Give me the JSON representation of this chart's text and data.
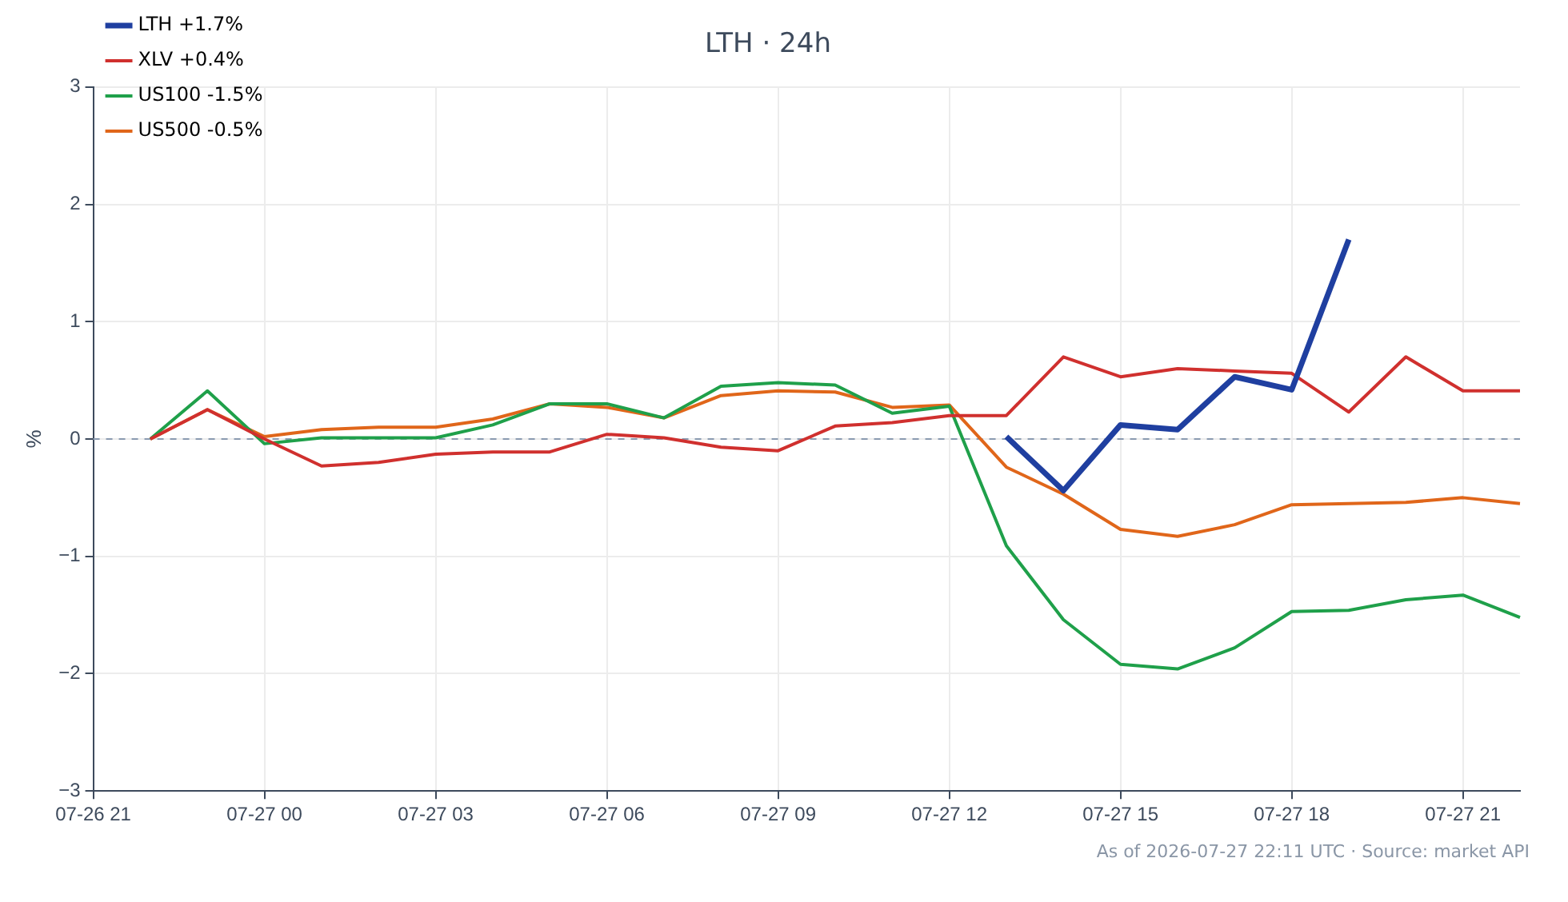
{
  "chart_data": {
    "type": "line",
    "title": "LTH · 24h",
    "ylabel": "%",
    "annotations": [
      "As of 2026-07-27 22:11 UTC · Source: market API"
    ],
    "categories": [
      "07-26 21",
      null,
      null,
      "07-27 00",
      null,
      null,
      "07-27 03",
      null,
      null,
      "07-27 06",
      null,
      null,
      "07-27 09",
      null,
      null,
      "07-27 12",
      null,
      null,
      "07-27 15",
      null,
      null,
      "07-27 18",
      null,
      null,
      "07-27 21",
      null
    ],
    "ylim": [
      -3,
      3
    ],
    "yticks": [
      {
        "value": -3,
        "label": "−3"
      },
      {
        "value": -2,
        "label": "−2"
      },
      {
        "value": -1,
        "label": "−1"
      },
      0,
      1,
      2,
      3
    ],
    "grid": true,
    "legend": "top left",
    "marker": "none",
    "ref_lines": [
      {
        "axis": "y",
        "value": 0,
        "label": null,
        "color": "#8a9ab0",
        "line_style": "dashed"
      }
    ],
    "series": [
      {
        "name": "LTH +1.7%",
        "color": "#1f3fa0",
        "values": [
          null,
          null,
          null,
          null,
          null,
          null,
          null,
          null,
          null,
          null,
          null,
          null,
          null,
          null,
          null,
          null,
          0.02,
          -0.44,
          0.12,
          0.08,
          0.53,
          0.42,
          1.7,
          null,
          null,
          null
        ]
      },
      {
        "name": "XLV +0.4%",
        "color": "#d0302e",
        "values": [
          null,
          0,
          0.25,
          0.0,
          -0.23,
          -0.2,
          -0.13,
          -0.11,
          -0.11,
          0.04,
          0.01,
          -0.07,
          -0.1,
          0.11,
          0.14,
          0.2,
          0.2,
          0.7,
          0.53,
          0.6,
          0.58,
          0.56,
          0.23,
          0.7,
          0.41,
          0.41
        ]
      },
      {
        "name": "US100 -1.5%",
        "color": "#1fa04a",
        "values": [
          null,
          0,
          0.41,
          -0.04,
          0.01,
          0.01,
          0.01,
          0.12,
          0.3,
          0.3,
          0.18,
          0.45,
          0.48,
          0.46,
          0.22,
          0.28,
          -0.91,
          -1.54,
          -1.92,
          -1.96,
          -1.78,
          -1.47,
          -1.46,
          -1.37,
          -1.33,
          -1.52
        ]
      },
      {
        "name": "US500 -0.5%",
        "color": "#e0661a",
        "values": [
          null,
          0,
          0.25,
          0.02,
          0.08,
          0.1,
          0.1,
          0.17,
          0.3,
          0.27,
          0.18,
          0.37,
          0.41,
          0.4,
          0.27,
          0.29,
          -0.24,
          -0.47,
          -0.77,
          -0.83,
          -0.73,
          -0.56,
          -0.55,
          -0.54,
          -0.5,
          -0.55
        ]
      }
    ]
  }
}
